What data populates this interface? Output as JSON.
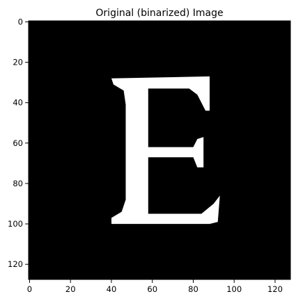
{
  "chart_data": {
    "type": "heatmap",
    "title": "Original (binarized) Image",
    "xlabel": "",
    "ylabel": "",
    "image_size": [
      128,
      128
    ],
    "colormap": "gray",
    "colors": {
      "background": "#000000",
      "foreground": "#ffffff"
    },
    "xlim": [
      -0.5,
      127.5
    ],
    "ylim": [
      127.5,
      -0.5
    ],
    "x_ticks": [
      0,
      20,
      40,
      60,
      80,
      100,
      120
    ],
    "y_ticks": [
      0,
      20,
      40,
      60,
      80,
      100,
      120
    ],
    "x_tick_labels": [
      "0",
      "20",
      "40",
      "60",
      "80",
      "100",
      "120"
    ],
    "y_tick_labels": [
      "0",
      "20",
      "40",
      "60",
      "80",
      "100",
      "120"
    ],
    "grid": false,
    "glyph": "E",
    "foreground_shape_points": [
      [
        40,
        28
      ],
      [
        88,
        27
      ],
      [
        88,
        44
      ],
      [
        86,
        44
      ],
      [
        82,
        36
      ],
      [
        78,
        33
      ],
      [
        58,
        33
      ],
      [
        58,
        62
      ],
      [
        80,
        62
      ],
      [
        82,
        58
      ],
      [
        85,
        57
      ],
      [
        85,
        72
      ],
      [
        82,
        72
      ],
      [
        80,
        67
      ],
      [
        58,
        67
      ],
      [
        58,
        95
      ],
      [
        84,
        95
      ],
      [
        90,
        90
      ],
      [
        93,
        86
      ],
      [
        92,
        99
      ],
      [
        88,
        100
      ],
      [
        40,
        100
      ],
      [
        40,
        97
      ],
      [
        45,
        94
      ],
      [
        47,
        88
      ],
      [
        47,
        41
      ],
      [
        46,
        34
      ],
      [
        41,
        31
      ]
    ]
  }
}
